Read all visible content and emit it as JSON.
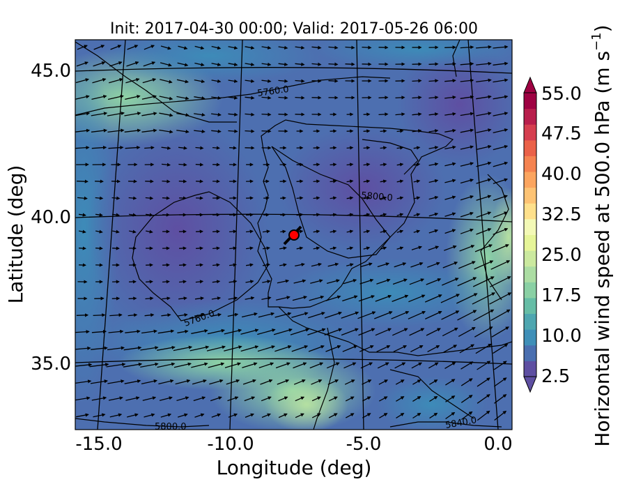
{
  "title": "Init: 2017-04-30 00:00; Valid: 2017-05-26 06:00",
  "xaxis": {
    "label": "Longitude (deg)",
    "ticks": [
      "-15.0",
      "-10.0",
      "-5.0",
      "0.0"
    ]
  },
  "yaxis": {
    "label": "Latitude (deg)",
    "ticks": [
      "45.0",
      "40.0",
      "35.0"
    ]
  },
  "colorbar": {
    "label": "Horizontal wind speed at 500.0 hPa (m s",
    "label_sup": "−1",
    "label_end": ")",
    "ticks": [
      "55.0",
      "47.5",
      "40.0",
      "32.5",
      "25.0",
      "17.5",
      "10.0",
      "2.5"
    ],
    "colors": [
      "#5e4fa2",
      "#4a6fb0",
      "#3f8fb8",
      "#4ea6b0",
      "#66bda6",
      "#8ad0a4",
      "#acdda3",
      "#cbe99f",
      "#e6f598",
      "#f3f9b6",
      "#fee08b",
      "#fdc374",
      "#fca55f",
      "#f58350",
      "#ea6148",
      "#d53e4f",
      "#b81e4c",
      "#9e0142"
    ]
  },
  "contours": [
    "5760.0",
    "5800.0",
    "5760.0",
    "5800.0",
    "5840.0"
  ],
  "marker": {
    "color": "#ff0000"
  }
}
